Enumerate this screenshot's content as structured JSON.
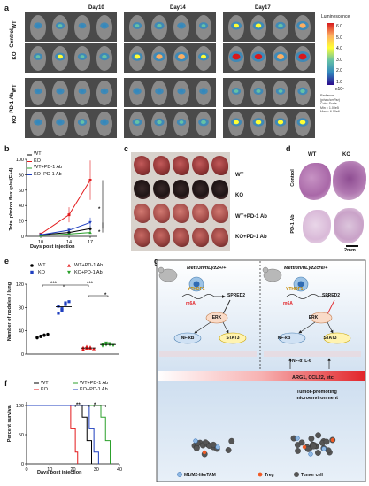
{
  "panels": {
    "a": {
      "label": "a",
      "days": [
        "Day10",
        "Day14",
        "Day17"
      ],
      "group_labels": [
        "Control",
        "PD-1 Ab"
      ],
      "row_labels": [
        "WT",
        "KO",
        "WT",
        "KO"
      ],
      "colorbar_label": "Luminescence",
      "colorbar_ticks": [
        "6.0",
        "5.0",
        "4.0",
        "3.0",
        "2.0",
        "1.0"
      ],
      "colorbar_unit": "x10⁶",
      "colorbar_footer": [
        "Radiance",
        "(p/sec/cm²/sr)",
        "Color Scale",
        "Min = 1.00e5",
        "Max = 6.00e6"
      ],
      "colorbar_colors": [
        "#d7191c",
        "#fdae61",
        "#ffff33",
        "#66c2a5",
        "#3288bd",
        "#2b0a8c"
      ]
    },
    "b": {
      "label": "b",
      "ylabel": "Total photon flux (p/s)(E+4)",
      "xlabel": "Days post injection",
      "legend": [
        "WT",
        "KO",
        "WT+PD-1 Ab",
        "KO+PD-1 Ab"
      ],
      "sig": [
        "*",
        "*"
      ]
    },
    "c": {
      "label": "c",
      "row_labels": [
        "WT",
        "KO",
        "WT+PD-1 Ab",
        "KO+PD-1 Ab"
      ]
    },
    "d": {
      "label": "d",
      "col_labels": [
        "WT",
        "KO"
      ],
      "row_labels": [
        "Control",
        "PD-1 Ab"
      ],
      "scale": "2mm"
    },
    "e": {
      "label": "e",
      "ylabel": "Number of nodules / lung",
      "legend": [
        "WT",
        "KO",
        "WT+PD-1 Ab",
        "KO+PD-1 Ab"
      ],
      "sig": [
        "***",
        "***",
        "*"
      ]
    },
    "f": {
      "label": "f",
      "ylabel": "Percent survival",
      "xlabel": "Days post injection",
      "legend": [
        "WT",
        "KO",
        "WT+PD-1 Ab",
        "KO+PD-1 Ab"
      ],
      "sig": [
        "**",
        "*"
      ]
    },
    "g": {
      "label": "g",
      "left_title": "Mettl3fl/flLyz2+/+",
      "right_title": "Mettl3fl/flLyz2cre/+",
      "ythdf1": "YTHDF1",
      "m6a": "m6A",
      "spred2": "SPRED2",
      "erk": "ERK",
      "nfkb": "NF-κB",
      "stat3": "STAT3",
      "cytokines": "TNF-α  IL-6",
      "arg_band": "ARG1, CCL22,   etc",
      "tumor_text": "Tumor-promoting microenvironment",
      "legend": [
        "M1/M2-likeTAM",
        "Treg",
        "Tumor cell"
      ]
    }
  },
  "chart_data": [
    {
      "type": "line",
      "title": "",
      "xlabel": "Days post injection",
      "ylabel": "Total photon flux (p/s)(E+4)",
      "x": [
        10,
        14,
        17
      ],
      "ylim": [
        0,
        100
      ],
      "yticks": [
        0,
        20,
        40,
        60,
        80,
        100
      ],
      "series": [
        {
          "name": "WT",
          "values": [
            2,
            5,
            10
          ],
          "color": "#000000"
        },
        {
          "name": "KO",
          "values": [
            3,
            28,
            73
          ],
          "color": "#e31a1c"
        },
        {
          "name": "WT+PD-1 Ab",
          "values": [
            1,
            3,
            5
          ],
          "color": "#2ca02c"
        },
        {
          "name": "KO+PD-1 Ab",
          "values": [
            2,
            8,
            18
          ],
          "color": "#1f3fbf"
        }
      ]
    },
    {
      "type": "scatter",
      "title": "",
      "ylabel": "Number of nodules / lung",
      "ylim": [
        0,
        120
      ],
      "yticks": [
        0,
        40,
        80,
        120
      ],
      "series": [
        {
          "name": "WT",
          "values": [
            28,
            30,
            32,
            34,
            29,
            31,
            33
          ],
          "color": "#000000"
        },
        {
          "name": "KO",
          "values": [
            70,
            78,
            85,
            90,
            82,
            75,
            88
          ],
          "color": "#1f3fbf"
        },
        {
          "name": "WT+PD-1 Ab",
          "values": [
            8,
            10,
            12,
            9,
            11,
            13,
            10
          ],
          "color": "#e31a1c"
        },
        {
          "name": "KO+PD-1 Ab",
          "values": [
            14,
            16,
            18,
            15,
            17,
            19,
            16
          ],
          "color": "#2ca02c"
        }
      ]
    },
    {
      "type": "line",
      "title": "",
      "xlabel": "Days post injection",
      "ylabel": "Percent survival",
      "xlim": [
        0,
        40
      ],
      "xticks": [
        0,
        10,
        20,
        30,
        40
      ],
      "ylim": [
        0,
        100
      ],
      "yticks": [
        0,
        50,
        100
      ],
      "series": [
        {
          "name": "WT",
          "steps": [
            [
              0,
              100
            ],
            [
              24,
              100
            ],
            [
              24,
              80
            ],
            [
              26,
              80
            ],
            [
              26,
              40
            ],
            [
              28,
              40
            ],
            [
              28,
              0
            ]
          ],
          "color": "#000000"
        },
        {
          "name": "KO",
          "steps": [
            [
              0,
              100
            ],
            [
              19,
              100
            ],
            [
              19,
              60
            ],
            [
              21,
              60
            ],
            [
              21,
              20
            ],
            [
              22,
              20
            ],
            [
              22,
              0
            ]
          ],
          "color": "#e31a1c"
        },
        {
          "name": "WT+PD-1 Ab",
          "steps": [
            [
              0,
              100
            ],
            [
              32,
              100
            ],
            [
              32,
              80
            ],
            [
              34,
              80
            ],
            [
              34,
              40
            ],
            [
              36,
              40
            ],
            [
              36,
              0
            ]
          ],
          "color": "#2ca02c"
        },
        {
          "name": "KO+PD-1 Ab",
          "steps": [
            [
              0,
              100
            ],
            [
              27,
              100
            ],
            [
              27,
              60
            ],
            [
              29,
              60
            ],
            [
              29,
              20
            ],
            [
              31,
              20
            ],
            [
              31,
              0
            ]
          ],
          "color": "#1f3fbf"
        }
      ]
    }
  ]
}
